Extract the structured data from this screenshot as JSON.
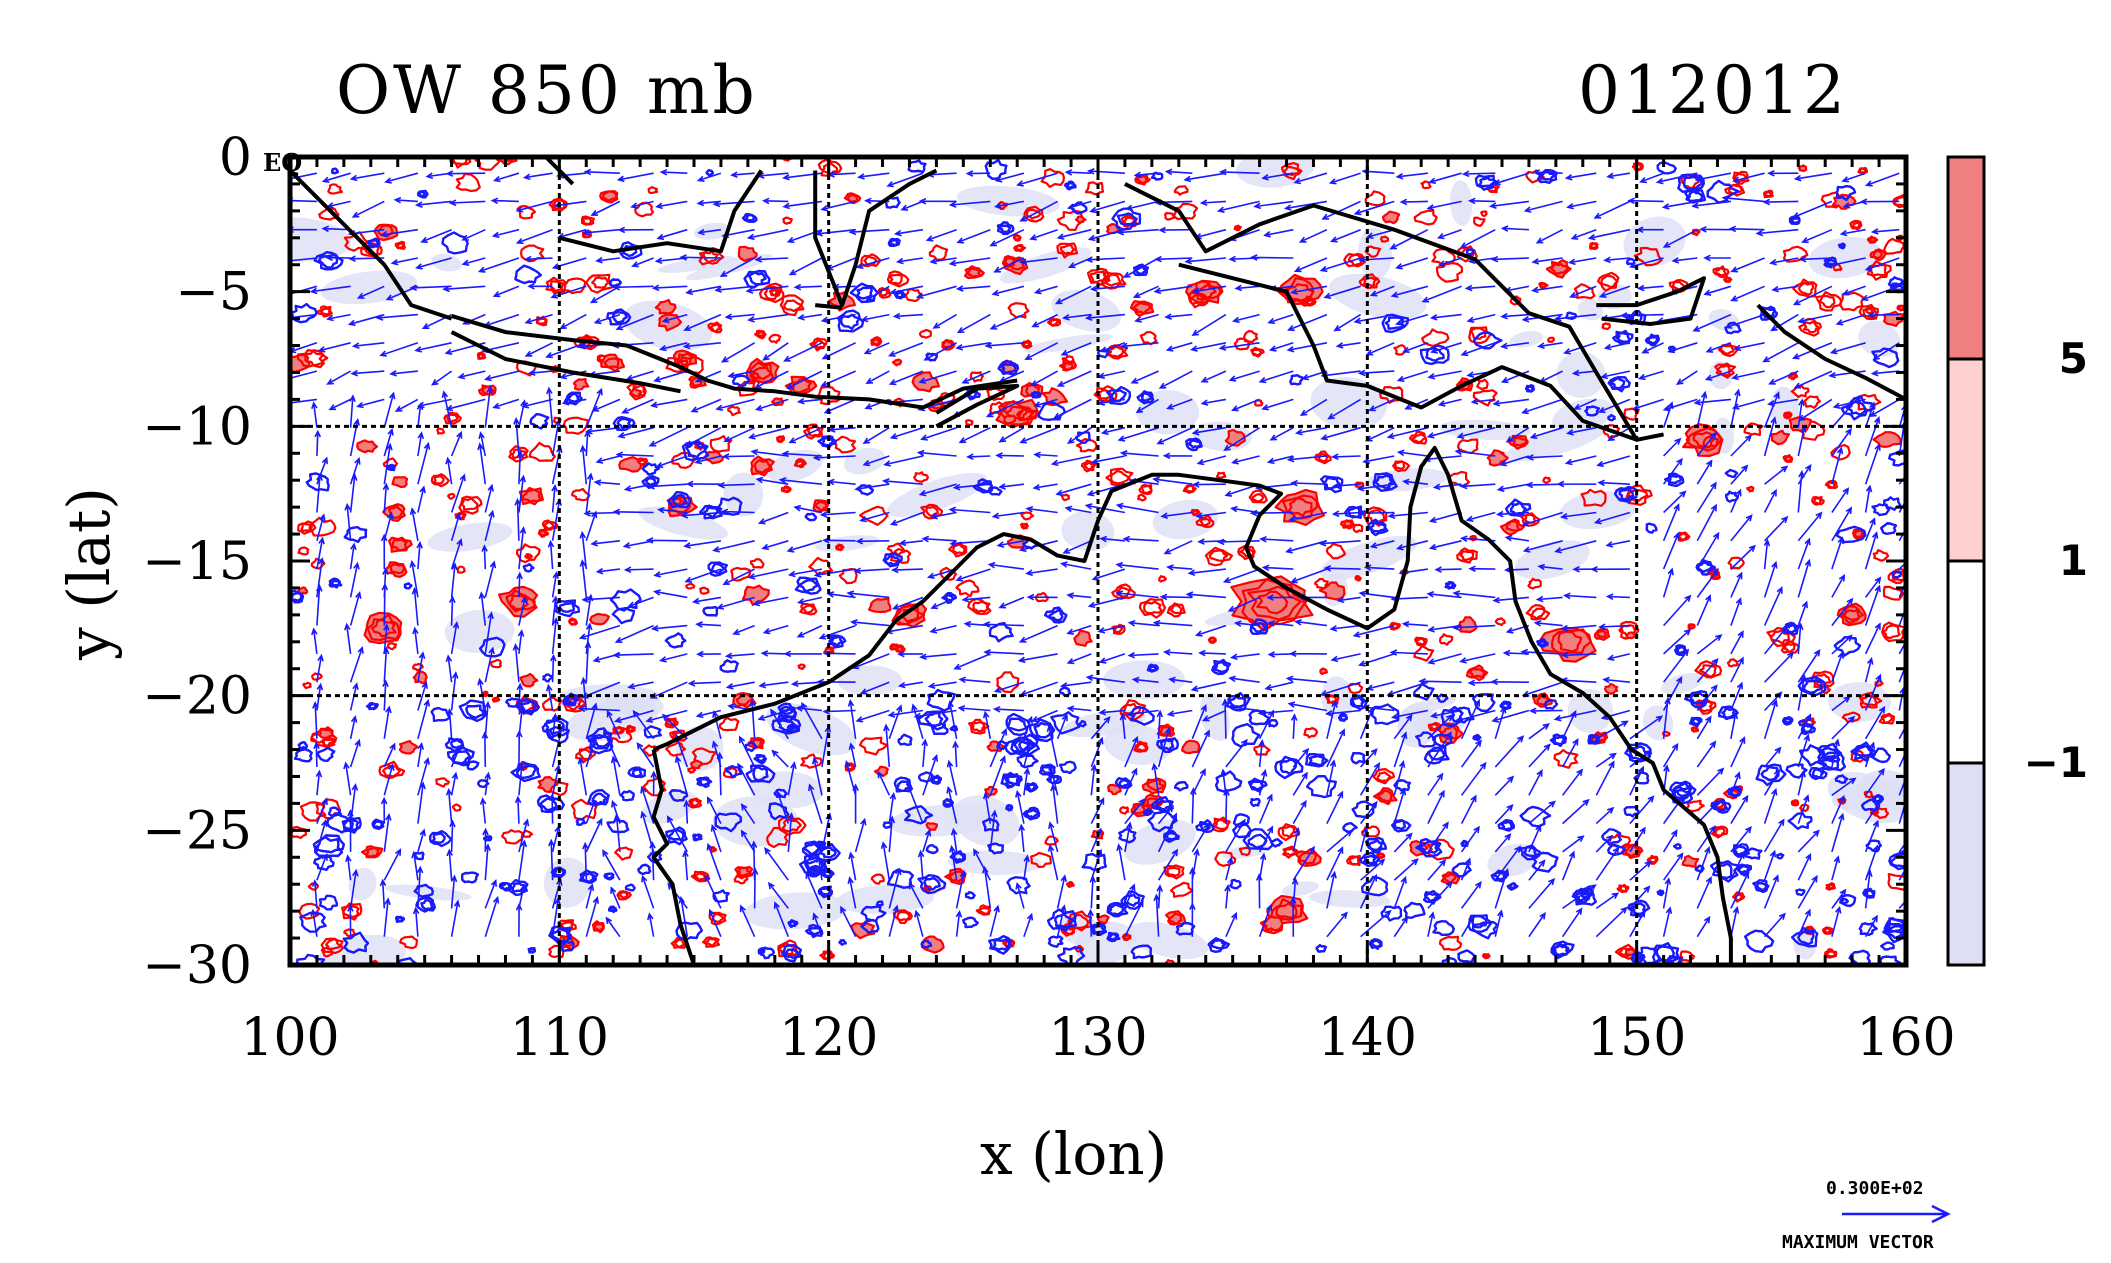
{
  "chart_data": {
    "type": "map",
    "title_left": "OW 850 mb",
    "title_right": "012012",
    "xlabel": "x (lon)",
    "ylabel": "y (lat)",
    "xlim": [
      100,
      160
    ],
    "ylim": [
      -30,
      0
    ],
    "x_ticks": [
      100,
      110,
      120,
      130,
      140,
      150,
      160
    ],
    "y_ticks": [
      0,
      -5,
      -10,
      -15,
      -20,
      -25,
      -30
    ],
    "x_tick_labels": [
      "100",
      "110",
      "120",
      "130",
      "140",
      "150",
      "160"
    ],
    "y_tick_labels": [
      "0",
      "−5",
      "−10",
      "−15",
      "−20",
      "−25",
      "−30"
    ],
    "corner_label": "EQ",
    "grid": true,
    "gridlines_lon": [
      110,
      120,
      130,
      140,
      150
    ],
    "gridlines_lat": [
      -10,
      -20
    ],
    "colorbar": {
      "levels": [
        -1,
        1,
        5
      ],
      "level_labels": [
        "−1",
        "1",
        "5"
      ],
      "colors": [
        "#dde0f5",
        "#ffffff",
        "#ffd0d0",
        "#f08080"
      ]
    },
    "vector_legend": {
      "value_label": "0.300E+02",
      "caption": "MAXIMUM VECTOR",
      "color": "#1a1aff"
    },
    "colors": {
      "positive_contour": "#ff0000",
      "negative_contour": "#1a1aff",
      "coastline": "#000000"
    }
  }
}
